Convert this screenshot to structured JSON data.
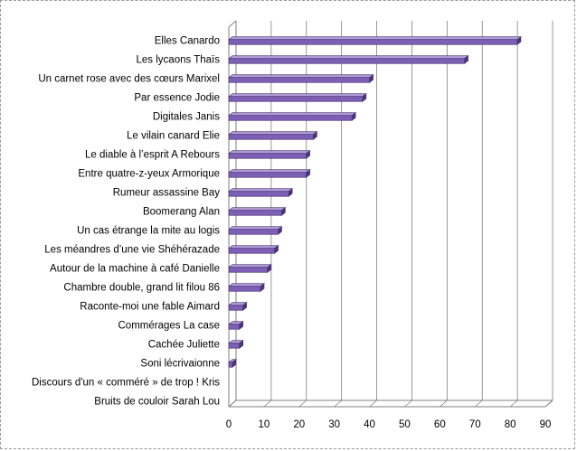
{
  "chart_data": {
    "type": "bar",
    "orientation": "horizontal",
    "title": "",
    "xlabel": "",
    "ylabel": "",
    "categories": [
      "Elles Canardo",
      "Les lycaons Thaïs",
      "Un carnet rose avec des cœurs Marixel",
      "Par essence  Jodie",
      "Digitales Janis",
      "Le vilain canard Elie",
      "Le diable à l’esprit A Rebours",
      "Entre quatre-z-yeux Armorique",
      "Rumeur assassine Bay",
      "Boomerang Alan",
      "Un cas étrange la mite au logis",
      "Les méandres d’une vie Shéhérazade",
      "Autour de la machine à café Danielle",
      "Chambre double, grand lit filou 86",
      "Raconte-moi une fable  Aimard",
      "Commérages La case",
      "Cachée Juliette",
      "Soni  lécrivaionne",
      "Discours d'un « comméré » de trop ! Kris",
      "Bruits de couloir Sarah Lou"
    ],
    "values": [
      82,
      67,
      40,
      38,
      35,
      24,
      22,
      22,
      17,
      15,
      14,
      13,
      11,
      9,
      4,
      3,
      3,
      1,
      0,
      0
    ],
    "xlim": [
      0,
      90
    ],
    "xticks": [
      "0",
      "10",
      "20",
      "30",
      "40",
      "50",
      "60",
      "70",
      "80",
      "90"
    ],
    "grid": true,
    "legend": "none",
    "style": "3d",
    "colors": {
      "bar_front": "#7d5fb5",
      "bar_top": "#b7a4dc",
      "bar_dark": "#4b3477",
      "grid": "#7f7f7f",
      "axis": "#7f7f7f"
    }
  }
}
